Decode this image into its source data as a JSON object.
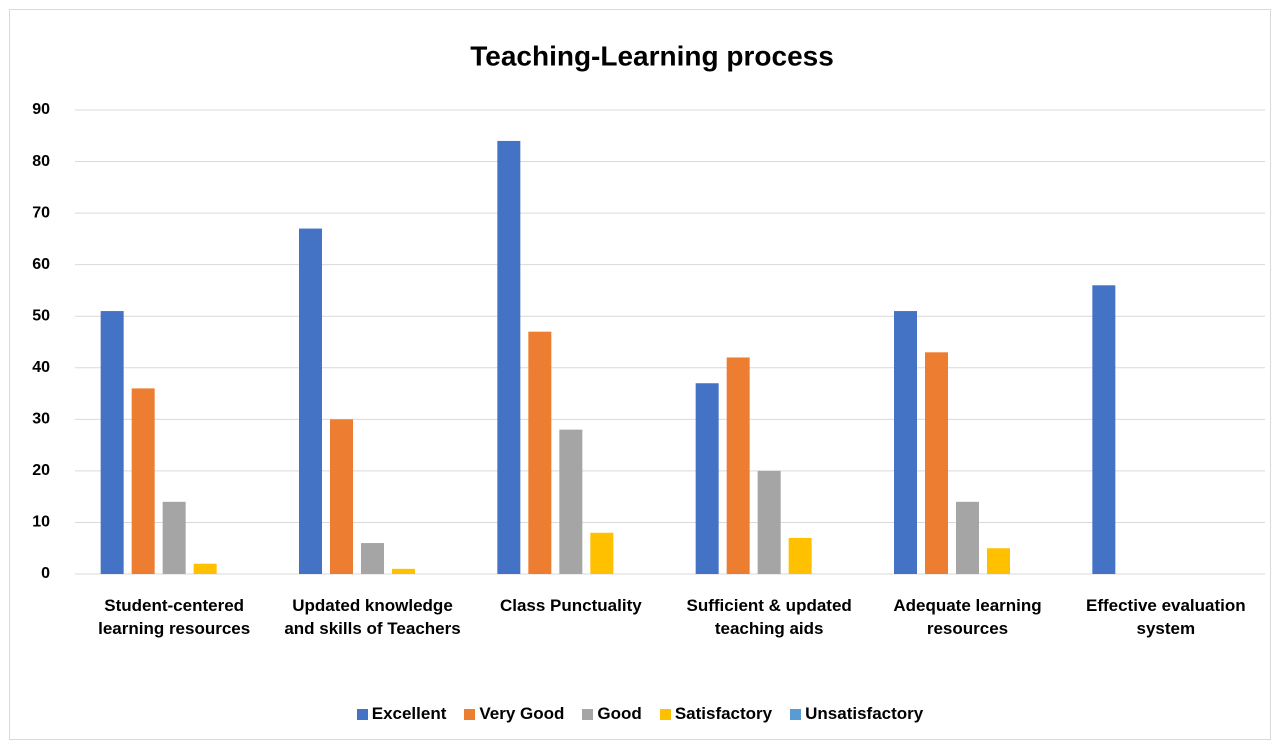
{
  "chart_data": {
    "type": "bar",
    "title": "Teaching-Learning process",
    "categories": [
      "Student-centered learning resources",
      "Updated knowledge and skills of Teachers",
      "Class Punctuality",
      "Sufficient & updated teaching aids",
      "Adequate learning resources",
      "Effective evaluation system"
    ],
    "series": [
      {
        "name": "Excellent",
        "color": "#4472c4",
        "values": [
          51,
          67,
          84,
          37,
          51,
          56
        ]
      },
      {
        "name": "Very Good",
        "color": "#ed7d31",
        "values": [
          36,
          30,
          47,
          42,
          43,
          0
        ]
      },
      {
        "name": "Good",
        "color": "#a5a5a5",
        "values": [
          14,
          6,
          28,
          20,
          14,
          0
        ]
      },
      {
        "name": "Satisfactory",
        "color": "#ffc000",
        "values": [
          2,
          1,
          8,
          7,
          5,
          0
        ]
      },
      {
        "name": "Unsatisfactory",
        "color": "#5b9bd5",
        "values": [
          0,
          0,
          0,
          0,
          0,
          0
        ]
      }
    ],
    "ylim": [
      0,
      90
    ],
    "yticks": [
      0,
      10,
      20,
      30,
      40,
      50,
      60,
      70,
      80,
      90
    ],
    "grid": true,
    "legend": "bottom"
  }
}
